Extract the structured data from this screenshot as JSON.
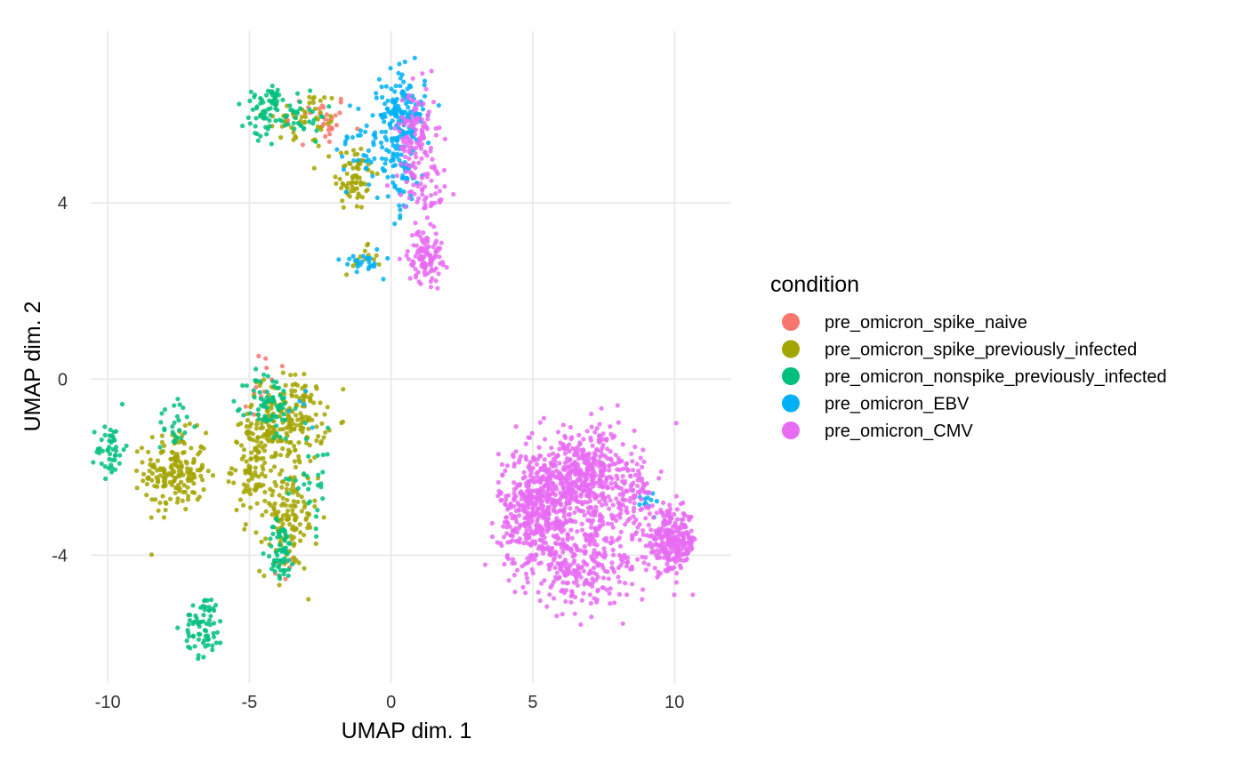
{
  "chart_data": {
    "type": "scatter",
    "title": "",
    "xlabel": "UMAP dim. 1",
    "ylabel": "UMAP dim. 2",
    "xlim": [
      -10.6,
      12.0
    ],
    "ylim": [
      -6.9,
      7.9
    ],
    "x_ticks": [
      -10,
      -5,
      0,
      5,
      10
    ],
    "x_tick_labels": [
      "-10",
      "-5",
      "0",
      "5",
      "10"
    ],
    "y_ticks": [
      -4,
      0,
      4
    ],
    "y_tick_labels": [
      "-4",
      "0",
      "4"
    ],
    "grid": true,
    "legend": {
      "title": "condition",
      "placement": "right"
    },
    "series": [
      {
        "name": "pre_omicron_spike_naive",
        "color": "#F8766D",
        "clusters": [
          {
            "cx": -2.3,
            "cy": 5.9,
            "sx": 0.4,
            "sy": 0.3,
            "n": 25
          },
          {
            "cx": -4.4,
            "cy": -0.2,
            "sx": 0.5,
            "sy": 0.5,
            "n": 12
          },
          {
            "cx": -3.8,
            "cy": -4.3,
            "sx": 0.2,
            "sy": 0.15,
            "n": 8
          },
          {
            "cx": -3.2,
            "cy": 5.8,
            "sx": 0.4,
            "sy": 0.3,
            "n": 8
          }
        ]
      },
      {
        "name": "pre_omicron_spike_previously_infected",
        "color": "#A3A500",
        "clusters": [
          {
            "cx": -1.3,
            "cy": 4.6,
            "sx": 0.35,
            "sy": 0.4,
            "n": 70
          },
          {
            "cx": -3.1,
            "cy": 5.9,
            "sx": 0.7,
            "sy": 0.35,
            "n": 45
          },
          {
            "cx": -7.6,
            "cy": -2.1,
            "sx": 0.55,
            "sy": 0.45,
            "n": 180
          },
          {
            "cx": -4.8,
            "cy": -1.9,
            "sx": 0.4,
            "sy": 0.6,
            "n": 130
          },
          {
            "cx": -3.5,
            "cy": -0.9,
            "sx": 0.6,
            "sy": 0.5,
            "n": 180
          },
          {
            "cx": -3.6,
            "cy": -3.2,
            "sx": 0.5,
            "sy": 0.6,
            "n": 120
          },
          {
            "cx": -1.1,
            "cy": 2.7,
            "sx": 0.3,
            "sy": 0.15,
            "n": 15
          }
        ]
      },
      {
        "name": "pre_omicron_nonspike_previously_infected",
        "color": "#00BF7D",
        "clusters": [
          {
            "cx": -4.6,
            "cy": 5.9,
            "sx": 0.3,
            "sy": 0.35,
            "n": 40
          },
          {
            "cx": -4.2,
            "cy": 6.5,
            "sx": 0.2,
            "sy": 0.15,
            "n": 20
          },
          {
            "cx": -3.3,
            "cy": 6.0,
            "sx": 0.5,
            "sy": 0.3,
            "n": 40
          },
          {
            "cx": -9.9,
            "cy": -1.6,
            "sx": 0.25,
            "sy": 0.3,
            "n": 45
          },
          {
            "cx": -7.6,
            "cy": -1.0,
            "sx": 0.3,
            "sy": 0.35,
            "n": 25
          },
          {
            "cx": -4.3,
            "cy": -0.6,
            "sx": 0.4,
            "sy": 0.4,
            "n": 70
          },
          {
            "cx": -3.9,
            "cy": -3.9,
            "sx": 0.25,
            "sy": 0.35,
            "n": 60
          },
          {
            "cx": -6.6,
            "cy": -5.6,
            "sx": 0.35,
            "sy": 0.35,
            "n": 70
          },
          {
            "cx": -2.8,
            "cy": -2.3,
            "sx": 0.4,
            "sy": 0.6,
            "n": 30
          }
        ]
      },
      {
        "name": "pre_omicron_EBV",
        "color": "#00B0F6",
        "clusters": [
          {
            "cx": 0.4,
            "cy": 6.0,
            "sx": 0.4,
            "sy": 0.5,
            "n": 160
          },
          {
            "cx": 0.3,
            "cy": 4.7,
            "sx": 0.4,
            "sy": 0.5,
            "n": 60
          },
          {
            "cx": -0.9,
            "cy": 5.3,
            "sx": 0.5,
            "sy": 0.6,
            "n": 40
          },
          {
            "cx": -1.0,
            "cy": 2.7,
            "sx": 0.35,
            "sy": 0.15,
            "n": 25
          },
          {
            "cx": 9.0,
            "cy": -2.8,
            "sx": 0.3,
            "sy": 0.15,
            "n": 12
          },
          {
            "cx": -3.2,
            "cy": -0.8,
            "sx": 0.3,
            "sy": 0.2,
            "n": 5
          }
        ]
      },
      {
        "name": "pre_omicron_CMV",
        "color": "#E76BF3",
        "clusters": [
          {
            "cx": 0.9,
            "cy": 5.5,
            "sx": 0.35,
            "sy": 0.6,
            "n": 120
          },
          {
            "cx": 1.3,
            "cy": 4.2,
            "sx": 0.35,
            "sy": 0.3,
            "n": 40
          },
          {
            "cx": 1.2,
            "cy": 2.8,
            "sx": 0.3,
            "sy": 0.3,
            "n": 110
          },
          {
            "cx": 5.2,
            "cy": -3.0,
            "sx": 0.7,
            "sy": 0.7,
            "n": 500
          },
          {
            "cx": 6.8,
            "cy": -2.2,
            "sx": 0.9,
            "sy": 0.55,
            "n": 420
          },
          {
            "cx": 7.3,
            "cy": -4.0,
            "sx": 1.0,
            "sy": 0.5,
            "n": 200
          },
          {
            "cx": 9.9,
            "cy": -3.7,
            "sx": 0.45,
            "sy": 0.35,
            "n": 260
          },
          {
            "cx": 8.3,
            "cy": -2.6,
            "sx": 0.5,
            "sy": 0.4,
            "n": 80
          },
          {
            "cx": 6.3,
            "cy": -4.6,
            "sx": 0.5,
            "sy": 0.35,
            "n": 60
          }
        ]
      }
    ]
  }
}
